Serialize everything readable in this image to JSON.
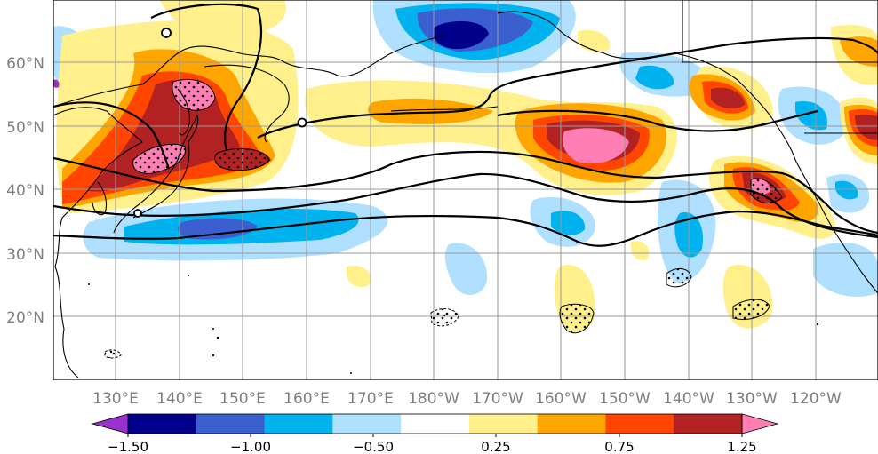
{
  "map": {
    "lat_labels": [
      "60°N",
      "50°N",
      "40°N",
      "30°N",
      "20°N"
    ],
    "lon_labels": [
      "130°E",
      "140°E",
      "150°E",
      "160°E",
      "170°E",
      "180°W",
      "170°W",
      "160°W",
      "150°W",
      "140°W",
      "130°W",
      "120°W"
    ],
    "gridlines": true,
    "contour_color": "#000000",
    "stipple_meaning_shown": false
  },
  "colorbar": {
    "levels": [
      "−1.50",
      "−1.00",
      "−0.50",
      "0.25",
      "0.75",
      "1.25"
    ],
    "colors": [
      "#9932cc",
      "#00008b",
      "#3c5fd0",
      "#00b2ee",
      "#b0e0ff",
      "#ffffff",
      "#fff08c",
      "#ffa500",
      "#ff4500",
      "#b22222",
      "#ff7fb4"
    ]
  }
}
